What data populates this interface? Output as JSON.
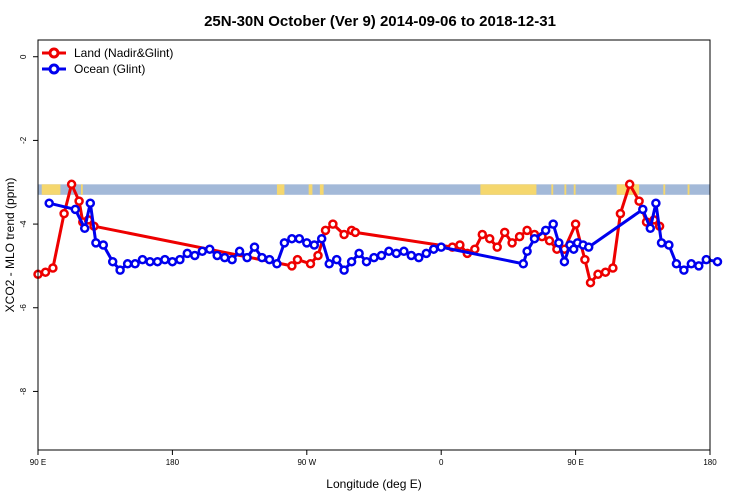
{
  "chart_data": {
    "type": "line",
    "title": "25N-30N October (Ver 9)   2014-09-06 to 2018-12-31",
    "xlabel": "Longitude (deg E)",
    "ylabel": "XCO2 - MLO trend (ppm)",
    "xlim": [
      90,
      450
    ],
    "ylim": [
      -9.4,
      0.4
    ],
    "x_tick_values": [
      90,
      150,
      210,
      270,
      330,
      390,
      450
    ],
    "x_tick_labels": [
      "90 E",
      "180",
      "90 W",
      "0",
      "90 E",
      "180"
    ],
    "x_tick_positions": [
      90,
      180,
      270,
      360,
      450,
      540
    ],
    "y_ticks": [
      0,
      -2,
      -4,
      -6,
      -8
    ],
    "legend_position": "top-left",
    "grid": false,
    "land_mask_band": {
      "y_top": -3.05,
      "y_bottom": -3.3,
      "ocean_color": "#a3b9d8",
      "land_color": "#f5d76e"
    },
    "series": [
      {
        "name": "Land (Nadir&Glint)",
        "color": "#ee0000",
        "x": [
          90,
          94,
          98,
          104,
          108,
          112,
          114,
          117,
          120,
          226,
          229,
          236,
          240,
          244,
          248,
          254,
          258,
          260,
          312,
          316,
          320,
          324,
          328,
          332,
          336,
          340,
          344,
          348,
          352,
          356,
          360,
          364,
          368,
          372,
          378,
          383,
          386,
          390,
          394,
          398,
          402,
          407,
          412,
          416,
          420,
          423
        ],
        "y": [
          -5.2,
          -5.15,
          -5.05,
          -3.75,
          -3.05,
          -3.45,
          -3.95,
          -3.9,
          -4.05,
          -5.0,
          -4.85,
          -4.95,
          -4.75,
          -4.15,
          -4.0,
          -4.25,
          -4.15,
          -4.2,
          -4.55,
          -4.5,
          -4.7,
          -4.6,
          -4.25,
          -4.35,
          -4.55,
          -4.2,
          -4.45,
          -4.3,
          -4.15,
          -4.25,
          -4.3,
          -4.4,
          -4.6,
          -4.6,
          -4.0,
          -4.85,
          -5.4,
          -5.2,
          -5.15,
          -5.05,
          -3.75,
          -3.05,
          -3.45,
          -3.95,
          -3.9,
          -4.05
        ]
      },
      {
        "name": "Ocean (Glint)",
        "color": "#0000ee",
        "x": [
          96,
          110,
          115,
          118,
          121,
          125,
          130,
          134,
          138,
          142,
          146,
          150,
          154,
          158,
          162,
          166,
          170,
          174,
          178,
          182,
          186,
          190,
          194,
          198,
          202,
          206,
          210,
          214,
          218,
          222,
          226,
          230,
          234,
          238,
          242,
          246,
          250,
          254,
          258,
          262,
          266,
          270,
          274,
          278,
          282,
          286,
          290,
          294,
          298,
          302,
          306,
          350,
          352,
          356,
          362,
          366,
          369,
          372,
          375,
          377,
          379,
          382,
          385,
          414,
          418,
          421,
          424,
          428,
          432,
          436,
          440,
          444,
          448,
          454
        ],
        "y": [
          -3.5,
          -3.65,
          -4.1,
          -3.5,
          -4.45,
          -4.5,
          -4.9,
          -5.1,
          -4.95,
          -4.95,
          -4.85,
          -4.9,
          -4.9,
          -4.85,
          -4.9,
          -4.85,
          -4.7,
          -4.75,
          -4.65,
          -4.6,
          -4.75,
          -4.8,
          -4.85,
          -4.65,
          -4.8,
          -4.55,
          -4.8,
          -4.85,
          -4.95,
          -4.45,
          -4.35,
          -4.35,
          -4.45,
          -4.5,
          -4.35,
          -4.95,
          -4.85,
          -5.1,
          -4.9,
          -4.7,
          -4.9,
          -4.8,
          -4.75,
          -4.65,
          -4.7,
          -4.65,
          -4.75,
          -4.8,
          -4.7,
          -4.6,
          -4.55,
          -4.95,
          -4.65,
          -4.35,
          -4.15,
          -4.0,
          -4.45,
          -4.9,
          -4.5,
          -4.6,
          -4.45,
          -4.5,
          -4.55,
          -3.65,
          -4.1,
          -3.5,
          -4.45,
          -4.5,
          -4.95,
          -5.1,
          -4.95,
          -5.0,
          -4.85,
          -4.9
        ]
      }
    ]
  }
}
